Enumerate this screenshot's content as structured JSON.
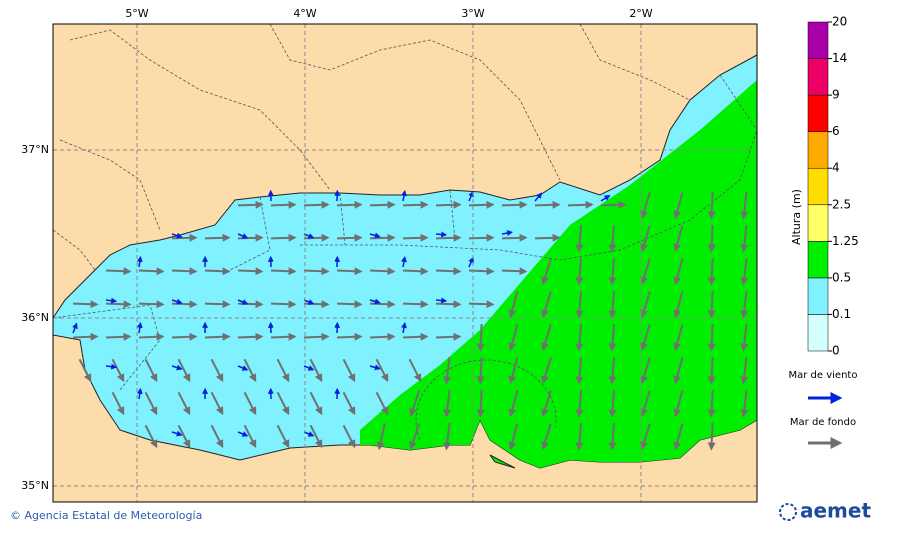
{
  "map": {
    "lon_ticks": [
      "5°W",
      "4°W",
      "3°W",
      "2°W"
    ],
    "lat_ticks": [
      "37°N",
      "36°N",
      "35°N"
    ]
  },
  "colorbar": {
    "title": "Altura (m)",
    "levels": [
      0,
      0.1,
      0.5,
      1.25,
      2.5,
      4,
      6,
      9,
      14,
      20
    ],
    "colors": [
      "#d4ffff",
      "#80f2ff",
      "#00ee00",
      "#ffff66",
      "#ffdd00",
      "#ffaa00",
      "#ff0000",
      "#ee0066",
      "#aa00aa"
    ]
  },
  "legend": {
    "wind_sea": "Mar de viento",
    "swell": "Mar de fondo"
  },
  "footer": {
    "credit": "© Agencia Estatal de Meteorología",
    "logo": "aemet"
  }
}
